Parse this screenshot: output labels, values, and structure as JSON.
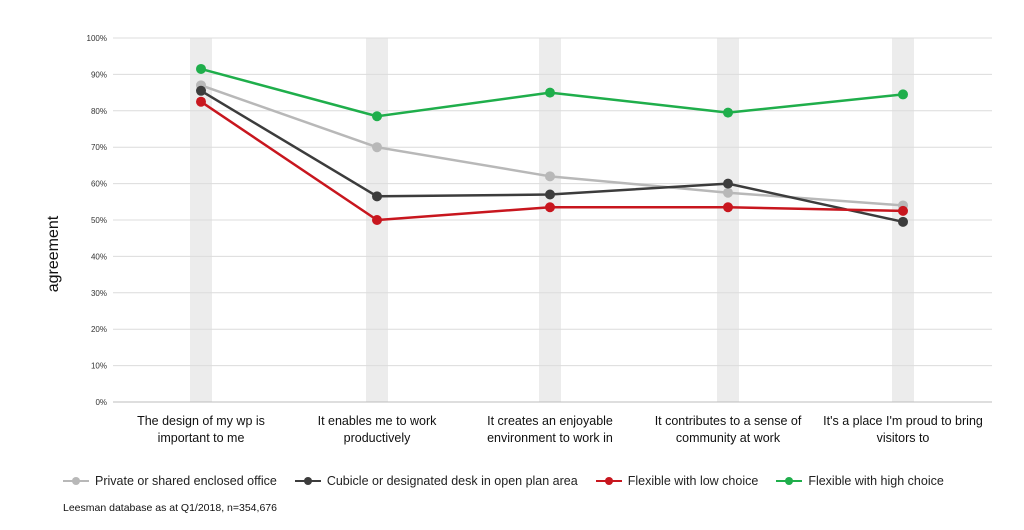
{
  "chart_data": {
    "type": "line",
    "ylabel": "agreement",
    "ylim": [
      0,
      100
    ],
    "ytick_labels": [
      "0%",
      "10%",
      "20%",
      "30%",
      "40%",
      "50%",
      "60%",
      "70%",
      "80%",
      "90%",
      "100%"
    ],
    "categories": [
      [
        "The design of my wp is",
        "important to me"
      ],
      [
        "It enables me to work",
        "productively"
      ],
      [
        "It creates an enjoyable",
        "environment to work in"
      ],
      [
        "It contributes to a sense of",
        "community at work"
      ],
      [
        "It's a place I'm proud to bring",
        "visitors to"
      ]
    ],
    "series": [
      {
        "name": "Private or shared enclosed office",
        "color": "#b8b8b8",
        "values": [
          87,
          70,
          62,
          57.5,
          54
        ]
      },
      {
        "name": "Cubicle or designated desk in open plan area",
        "color": "#3c3c3c",
        "values": [
          85.5,
          56.5,
          57,
          60,
          49.5
        ]
      },
      {
        "name": "Flexible with low choice",
        "color": "#c8161e",
        "values": [
          82.5,
          50,
          53.5,
          53.5,
          52.5
        ]
      },
      {
        "name": "Flexible with high choice",
        "color": "#1fae4b",
        "values": [
          91.5,
          78.5,
          85,
          79.5,
          84.5
        ]
      }
    ],
    "grid": true,
    "legend_position": "bottom"
  },
  "source_note": "Leesman database as at Q1/2018, n=354,676"
}
